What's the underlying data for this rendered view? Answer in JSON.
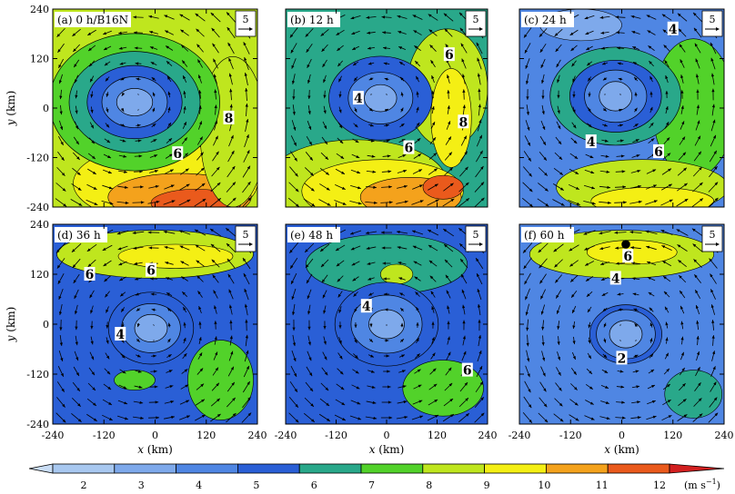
{
  "chart_data": {
    "type": "heatmap",
    "panels": [
      {
        "label": "(a)  0  h/B16N",
        "wind_scale_label": "5",
        "contour_labels": [
          "8",
          "6"
        ]
      },
      {
        "label": "(b)  12  h",
        "wind_scale_label": "5",
        "contour_labels": [
          "6",
          "4",
          "6",
          "8"
        ]
      },
      {
        "label": "(c)  24  h",
        "wind_scale_label": "5",
        "contour_labels": [
          "4",
          "4",
          "6"
        ]
      },
      {
        "label": "(d)  36  h",
        "wind_scale_label": "5",
        "contour_labels": [
          "6",
          "6",
          "4"
        ]
      },
      {
        "label": "(e)  48  h",
        "wind_scale_label": "5",
        "contour_labels": [
          "4",
          "6"
        ]
      },
      {
        "label": "(f)  60  h",
        "wind_scale_label": "5",
        "contour_labels": [
          "6",
          "4",
          "2"
        ]
      }
    ],
    "x_axis": {
      "label": "x",
      "unit": "(km)",
      "ticks": [
        "-240",
        "-120",
        "0",
        "120",
        "240"
      ],
      "range": [
        -240,
        240
      ]
    },
    "y_axis": {
      "label": "y",
      "unit": "(km)",
      "ticks": [
        "240",
        "120",
        "0",
        "-120",
        "-240"
      ],
      "range": [
        -240,
        240
      ]
    },
    "colorbar": {
      "levels": [
        "2",
        "3",
        "4",
        "5",
        "6",
        "7",
        "8",
        "9",
        "10",
        "11",
        "12"
      ],
      "unit_label": "(m  s",
      "unit_exp": "−1",
      "unit_close": ")",
      "colors": [
        "#c9ddf5",
        "#a8c8f0",
        "#7ea9eb",
        "#4f86e3",
        "#2a5fd6",
        "#29a88a",
        "#52d22a",
        "#bfe61e",
        "#f4ef14",
        "#f4a21c",
        "#ea5a1c",
        "#d21f1f"
      ]
    }
  }
}
